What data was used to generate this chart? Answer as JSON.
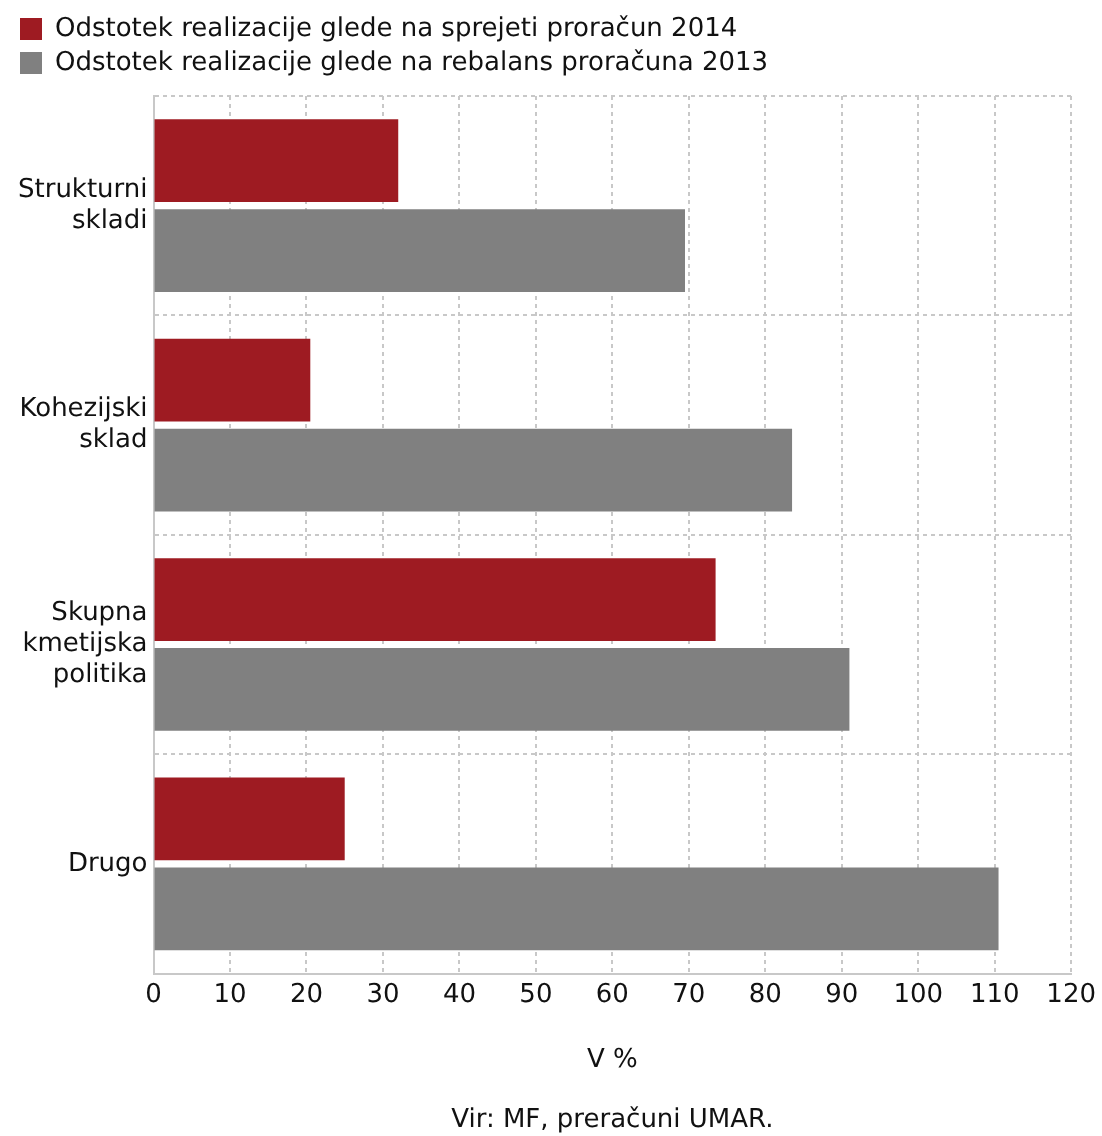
{
  "chart_data": {
    "type": "bar",
    "orientation": "horizontal",
    "categories": [
      "Strukturni skladi",
      "Kohezijski sklad",
      "Skupna kmetijska politika",
      "Drugo"
    ],
    "series": [
      {
        "name": "Odstotek realizacije glede na sprejeti proračun 2014",
        "color": "#9e1b22",
        "values": [
          32,
          20.5,
          73.5,
          25
        ]
      },
      {
        "name": "Odstotek realizacije glede na rebalans proračuna 2013",
        "color": "#808080",
        "values": [
          69.5,
          83.5,
          91,
          110.5
        ]
      }
    ],
    "xlim": [
      0,
      120
    ],
    "xticks": [
      0,
      10,
      20,
      30,
      40,
      50,
      60,
      70,
      80,
      90,
      100,
      110,
      120
    ],
    "xlabel": "V %",
    "grid": true,
    "legend": "top left",
    "annotations": [
      "Vir: MF, preračuni UMAR."
    ]
  }
}
